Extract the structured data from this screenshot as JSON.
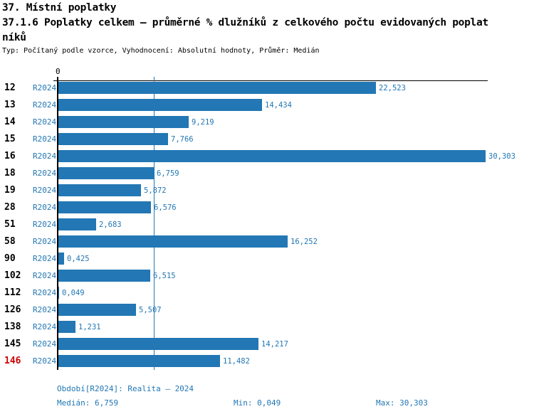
{
  "header": {
    "title_line1": "37. Místní poplatky",
    "title_line2": "37.1.6 Poplatky celkem – průměrné % dlužníků z celkového počtu evidovaných poplat",
    "title_line3": "níků",
    "meta": "Typ: Počítaný podle vzorce, Vyhodnocení: Absolutní hodnoty, Průměr: Medián"
  },
  "chart_data": {
    "type": "bar",
    "orientation": "horizontal",
    "title": "37.1.6 Poplatky celkem – průměrné % dlužníků z celkového počtu evidovaných poplatníků",
    "categories": [
      "12",
      "13",
      "14",
      "15",
      "16",
      "18",
      "19",
      "28",
      "51",
      "58",
      "90",
      "102",
      "112",
      "126",
      "138",
      "145",
      "146"
    ],
    "series_label": "R2024",
    "values": [
      22.523,
      14.434,
      9.219,
      7.766,
      30.303,
      6.759,
      5.872,
      6.576,
      2.683,
      16.252,
      0.425,
      6.515,
      0.049,
      5.507,
      1.231,
      14.217,
      11.482
    ],
    "value_labels": [
      "22,523",
      "14,434",
      "9,219",
      "7,766",
      "30,303",
      "6,759",
      "5,872",
      "6,576",
      "2,683",
      "16,252",
      "0,425",
      "6,515",
      "0,049",
      "5,507",
      "1,231",
      "14,217",
      "11,482"
    ],
    "xlim": [
      0,
      30.303
    ],
    "axis_tick_label": "0",
    "median_line_value": 6.759,
    "highlight_category": "146",
    "grid": "single median gridline",
    "legend_position": "none"
  },
  "footer": {
    "period": "Období[R2024]: Realita – 2024",
    "median": "Medián: 6,759",
    "min": "Min: 0,049",
    "max": "Max: 30,303"
  },
  "colors": {
    "bar": "#2277B4",
    "blue_text": "#2277B4",
    "highlight_red": "#CC0000",
    "axis_black": "#000000"
  }
}
